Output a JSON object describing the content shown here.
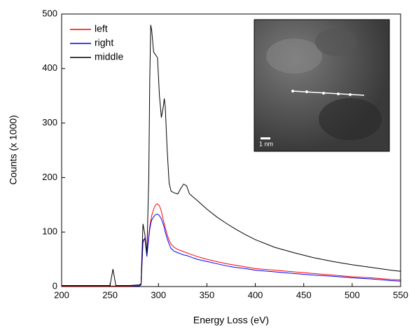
{
  "chart_data": {
    "type": "line",
    "xlabel": "Energy Loss (eV)",
    "ylabel": "Counts (x 1000)",
    "x": [
      200,
      220,
      240,
      250,
      253,
      256,
      270,
      280,
      282,
      284,
      286,
      288,
      290,
      291,
      292,
      293,
      295,
      297,
      299,
      301,
      303,
      305,
      306,
      307,
      309,
      311,
      313,
      316,
      320,
      323,
      326,
      329,
      332,
      340,
      350,
      360,
      370,
      380,
      390,
      400,
      420,
      440,
      460,
      480,
      500,
      520,
      540,
      550
    ],
    "series": [
      {
        "name": "left",
        "color": "#ff0000",
        "values": [
          1,
          1,
          1,
          1,
          1,
          1,
          1,
          2,
          4,
          80,
          90,
          60,
          95,
          110,
          120,
          130,
          142,
          150,
          152,
          148,
          138,
          122,
          115,
          108,
          95,
          85,
          78,
          72,
          68,
          66,
          64,
          62,
          60,
          55,
          50,
          46,
          42,
          39,
          36,
          33,
          30,
          27,
          24,
          21,
          18,
          16,
          13,
          12
        ]
      },
      {
        "name": "right",
        "color": "#0000ff",
        "values": [
          0,
          0,
          0,
          0,
          0,
          0,
          0,
          1,
          3,
          85,
          88,
          55,
          90,
          105,
          115,
          122,
          128,
          132,
          133,
          130,
          124,
          114,
          108,
          100,
          88,
          78,
          70,
          65,
          62,
          60,
          58,
          57,
          55,
          50,
          46,
          42,
          38,
          35,
          33,
          30,
          27,
          24,
          21,
          19,
          16,
          14,
          11,
          10
        ]
      },
      {
        "name": "middle",
        "color": "#000000",
        "values": [
          2,
          2,
          2,
          2,
          32,
          2,
          2,
          3,
          5,
          115,
          95,
          60,
          200,
          380,
          480,
          470,
          430,
          425,
          420,
          350,
          310,
          330,
          345,
          330,
          250,
          190,
          175,
          172,
          170,
          180,
          188,
          185,
          170,
          158,
          142,
          128,
          116,
          105,
          95,
          86,
          72,
          62,
          53,
          46,
          40,
          35,
          30,
          28
        ]
      }
    ],
    "xlim": [
      200,
      550
    ],
    "xticks": [
      200,
      250,
      300,
      350,
      400,
      450,
      500,
      550
    ],
    "ylim": [
      0,
      500
    ],
    "yticks": [
      0,
      100,
      200,
      300,
      400,
      500
    ],
    "legend": "upper left",
    "inset_scale_label": "1 nm"
  }
}
